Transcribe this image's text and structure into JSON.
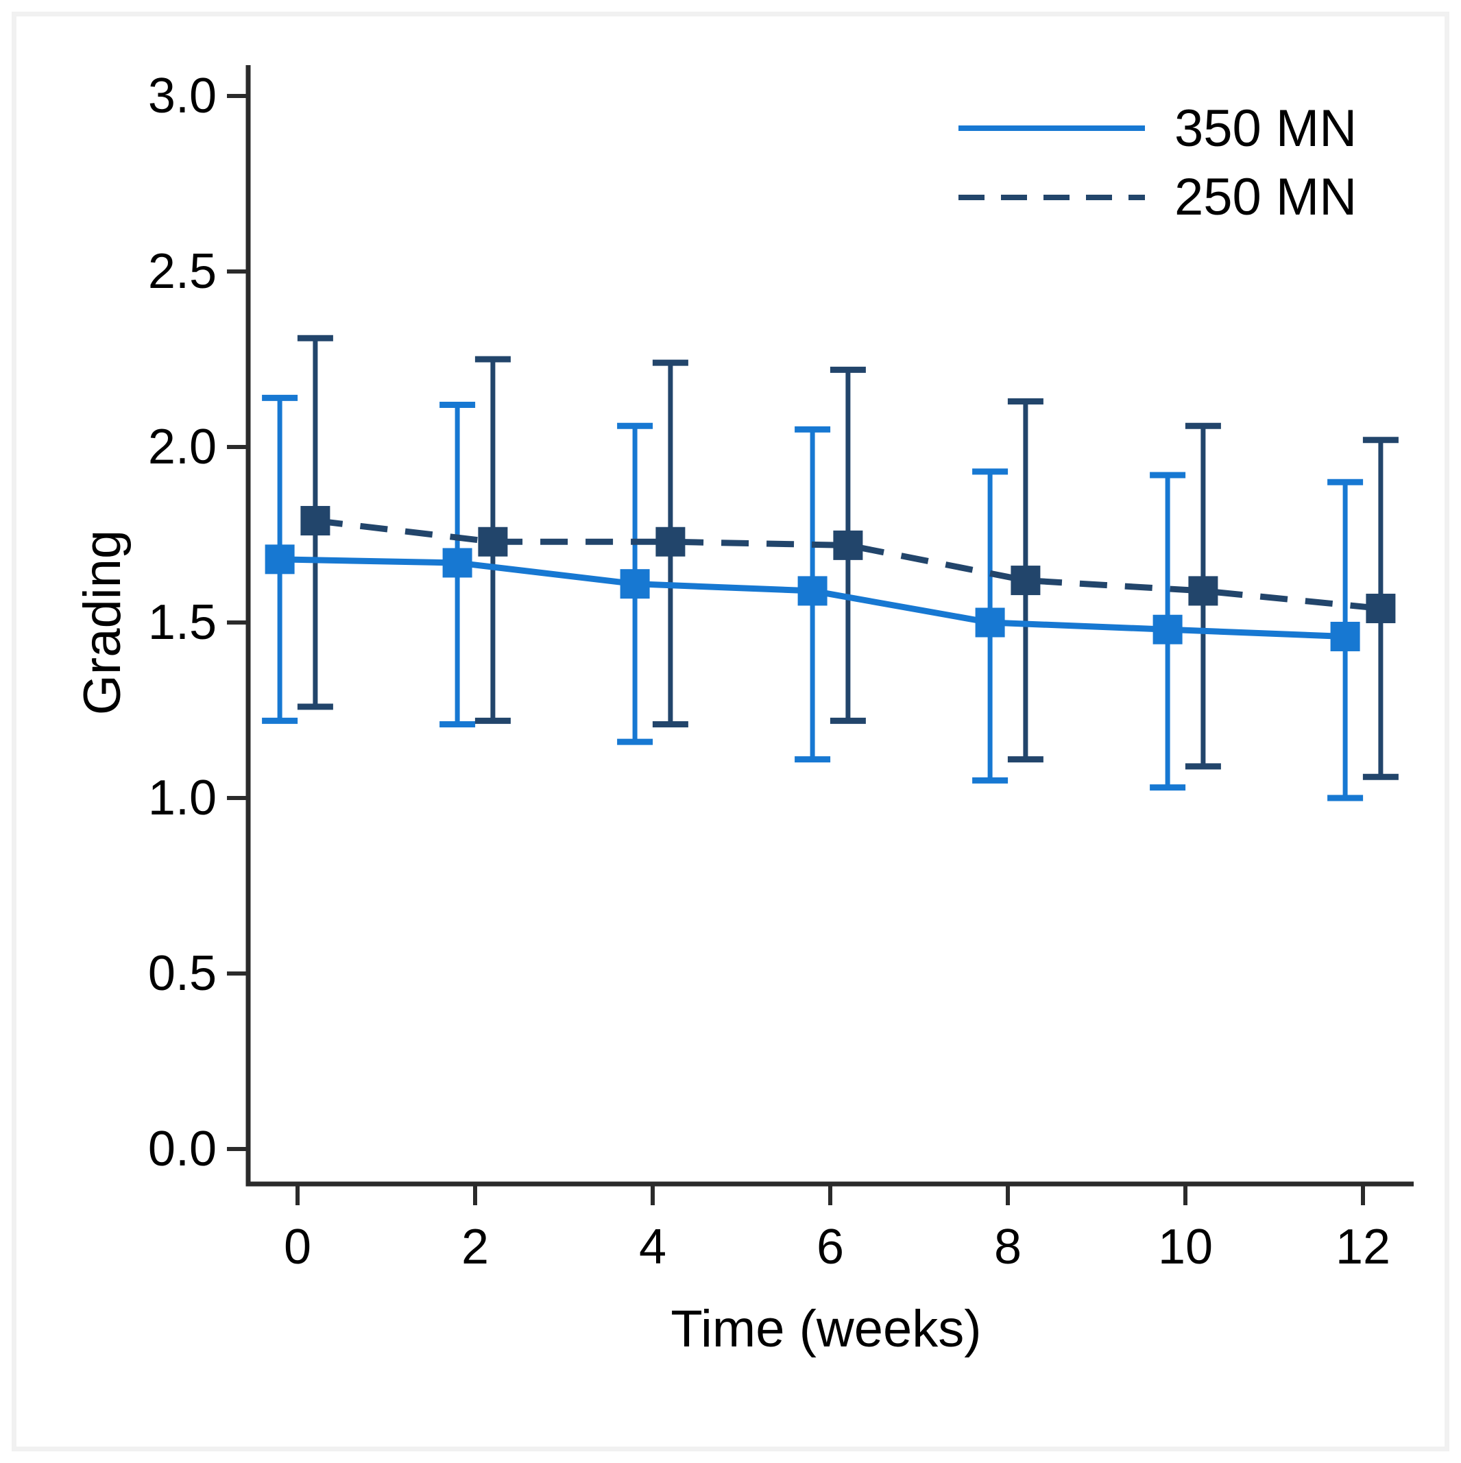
{
  "figure": {
    "background": "#ffffff",
    "border_color": "#f1f1f1",
    "axis_color": "#2b2b2b",
    "text_color": "#000000"
  },
  "chart_data": {
    "type": "line",
    "title": "",
    "xlabel": "Time (weeks)",
    "ylabel": "Grading",
    "x": [
      0,
      2,
      4,
      6,
      8,
      10,
      12
    ],
    "x_tick_labels": [
      "0",
      "2",
      "4",
      "6",
      "8",
      "10",
      "12"
    ],
    "y_ticks": [
      0.0,
      0.5,
      1.0,
      1.5,
      2.0,
      2.5,
      3.0
    ],
    "y_tick_labels": [
      "0.0",
      "0.5",
      "1.0",
      "1.5",
      "2.0",
      "2.5",
      "3.0"
    ],
    "xlim": [
      -0.56,
      12.57
    ],
    "ylim": [
      0.0,
      3.0
    ],
    "grid": false,
    "legend_position": "top-right",
    "error_bars": true,
    "series": [
      {
        "name": "350 MN",
        "style": "solid",
        "marker": "square",
        "color": "#1778d2",
        "x_offset_weeks": -0.2,
        "values": [
          1.68,
          1.67,
          1.61,
          1.59,
          1.5,
          1.48,
          1.46
        ],
        "ci_lower": [
          1.22,
          1.21,
          1.16,
          1.11,
          1.05,
          1.03,
          1.0
        ],
        "ci_upper": [
          2.14,
          2.12,
          2.06,
          2.05,
          1.93,
          1.92,
          1.9
        ]
      },
      {
        "name": "250 MN",
        "style": "dashed",
        "marker": "square",
        "color": "#22456b",
        "x_offset_weeks": 0.2,
        "values": [
          1.79,
          1.73,
          1.73,
          1.72,
          1.62,
          1.59,
          1.54
        ],
        "ci_lower": [
          1.26,
          1.22,
          1.21,
          1.22,
          1.11,
          1.09,
          1.06
        ],
        "ci_upper": [
          2.31,
          2.25,
          2.24,
          2.22,
          2.13,
          2.06,
          2.02
        ]
      }
    ]
  }
}
